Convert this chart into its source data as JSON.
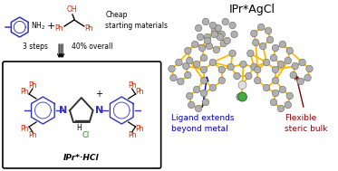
{
  "title": "IPr*AgCl",
  "title_fontsize": 9,
  "bg_color": "#ffffff",
  "blue_color": "#3333bb",
  "red_color": "#cc2200",
  "green_color": "#228822",
  "dark_red": "#8b0000",
  "black": "#000000",
  "gray_atom": "#aaaaaa",
  "gray_atom_edge": "#777777",
  "yellow_bond": "#FFB800",
  "label1": "Ligand extends\nbeyond metal",
  "label1_color": "#0000bb",
  "label2": "Flexible\nsteric bulk",
  "label2_color": "#8b0000",
  "cheap_text": "Cheap\nstarting materials",
  "steps_text": "3 steps",
  "yield_text": "40% overall",
  "product_label": "IPr*·HCl"
}
